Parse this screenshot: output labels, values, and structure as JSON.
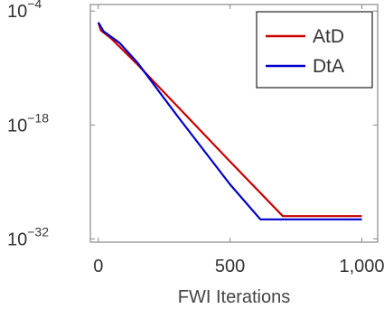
{
  "chart_data": {
    "type": "line",
    "title": "",
    "xlabel": "FWI Iterations",
    "ylabel": "",
    "xlim": [
      -30,
      1060
    ],
    "ylim_exponent": [
      -32.4,
      -3.2
    ],
    "y_scale": "log",
    "x_ticks": [
      {
        "value": 0,
        "label": "0"
      },
      {
        "value": 500,
        "label": "500"
      },
      {
        "value": 1000,
        "label": "1,000"
      }
    ],
    "y_ticks": [
      {
        "exp": -4,
        "label": "10",
        "sup": "−4"
      },
      {
        "exp": -18,
        "label": "10",
        "sup": "−18"
      },
      {
        "exp": -32,
        "label": "10",
        "sup": "−32"
      }
    ],
    "legend_position": "top-right",
    "grid": false,
    "series": [
      {
        "name": "AtD",
        "color": "#cc0000",
        "points": [
          {
            "x": 0,
            "exp": -5.4
          },
          {
            "x": 10,
            "exp": -6.4
          },
          {
            "x": 50,
            "exp": -7.4
          },
          {
            "x": 150,
            "exp": -10.6
          },
          {
            "x": 300,
            "exp": -15.7
          },
          {
            "x": 500,
            "exp": -22.5
          },
          {
            "x": 700,
            "exp": -29.2
          },
          {
            "x": 1000,
            "exp": -29.2
          }
        ]
      },
      {
        "name": "DtA",
        "color": "#0000cc",
        "points": [
          {
            "x": 0,
            "exp": -5.4
          },
          {
            "x": 20,
            "exp": -6.5
          },
          {
            "x": 80,
            "exp": -7.9
          },
          {
            "x": 150,
            "exp": -10.4
          },
          {
            "x": 300,
            "exp": -16.9
          },
          {
            "x": 500,
            "exp": -25.3
          },
          {
            "x": 615,
            "exp": -29.6
          },
          {
            "x": 1000,
            "exp": -29.6
          }
        ]
      }
    ]
  }
}
